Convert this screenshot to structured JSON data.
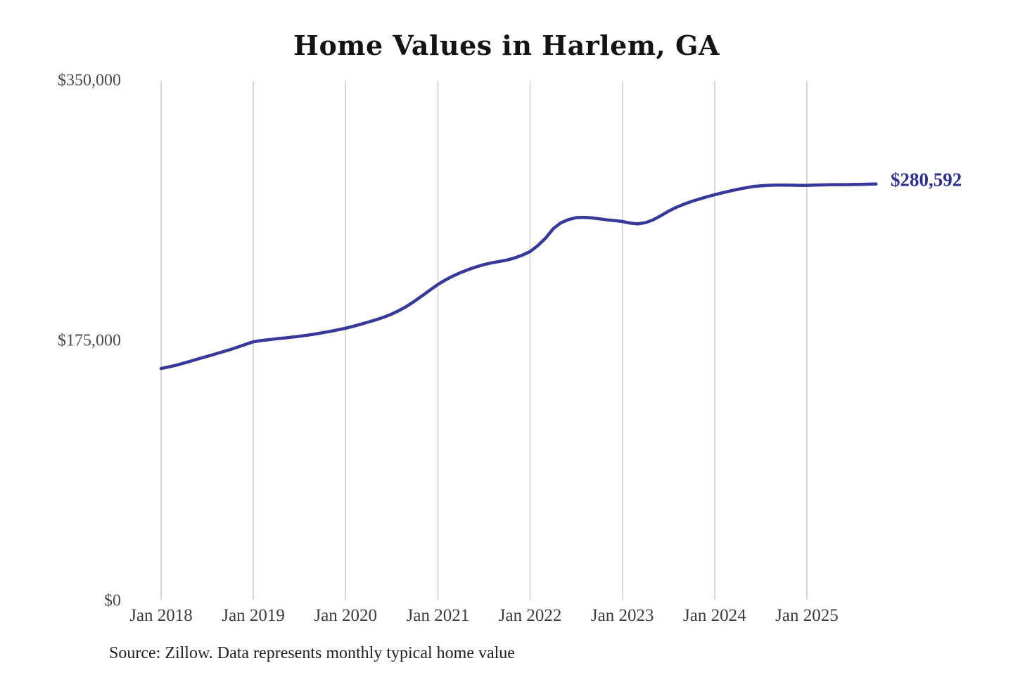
{
  "chart": {
    "title": "Home Values in Harlem, GA",
    "end_label": "$280,592",
    "source": "Source: Zillow. Data represents monthly typical home value",
    "colors": {
      "line": "#38389a",
      "end_label": "#2f2f8e",
      "gridline": "#cdcdcd",
      "title": "#141414",
      "axis_label": "#4a4a4a",
      "source": "#222222"
    }
  },
  "chart_data": {
    "type": "line",
    "title": "Home Values in Harlem, GA",
    "xlabel": "",
    "ylabel": "",
    "ylim": [
      0,
      350000
    ],
    "grid": "vertical-only",
    "legend": "none",
    "x_ticks": [
      "Jan 2018",
      "Jan 2019",
      "Jan 2020",
      "Jan 2021",
      "Jan 2022",
      "Jan 2023",
      "Jan 2024",
      "Jan 2025"
    ],
    "y_ticks": [
      {
        "label": "$0",
        "value": 0
      },
      {
        "label": "$175,000",
        "value": 175000
      },
      {
        "label": "$350,000",
        "value": 350000
      }
    ],
    "latest": {
      "label": "$280,592",
      "value": 280592
    },
    "series": [
      {
        "name": "Monthly typical home value",
        "start": "2018-01",
        "frequency": "monthly",
        "values": [
          156500,
          157600,
          158800,
          160200,
          161700,
          163200,
          164700,
          166200,
          167700,
          169300,
          171000,
          172800,
          174500,
          175300,
          175900,
          176500,
          177000,
          177600,
          178200,
          178900,
          179700,
          180600,
          181500,
          182500,
          183600,
          184900,
          186300,
          187800,
          189400,
          191100,
          193100,
          195600,
          198500,
          201900,
          205600,
          209400,
          213000,
          216100,
          218800,
          221100,
          223100,
          224900,
          226400,
          227600,
          228500,
          229500,
          230900,
          232800,
          235200,
          239200,
          244100,
          250500,
          254500,
          256700,
          258000,
          258200,
          257800,
          257200,
          256500,
          256000,
          255400,
          254300,
          253800,
          254600,
          256500,
          259300,
          262300,
          264900,
          267000,
          268900,
          270500,
          272000,
          273400,
          274700,
          275900,
          277000,
          278000,
          278900,
          279400,
          279700,
          279900,
          279900,
          279800,
          279700,
          279700,
          279900,
          280000,
          280100,
          280200,
          280200,
          280300,
          280400,
          280500,
          280592
        ]
      }
    ]
  }
}
